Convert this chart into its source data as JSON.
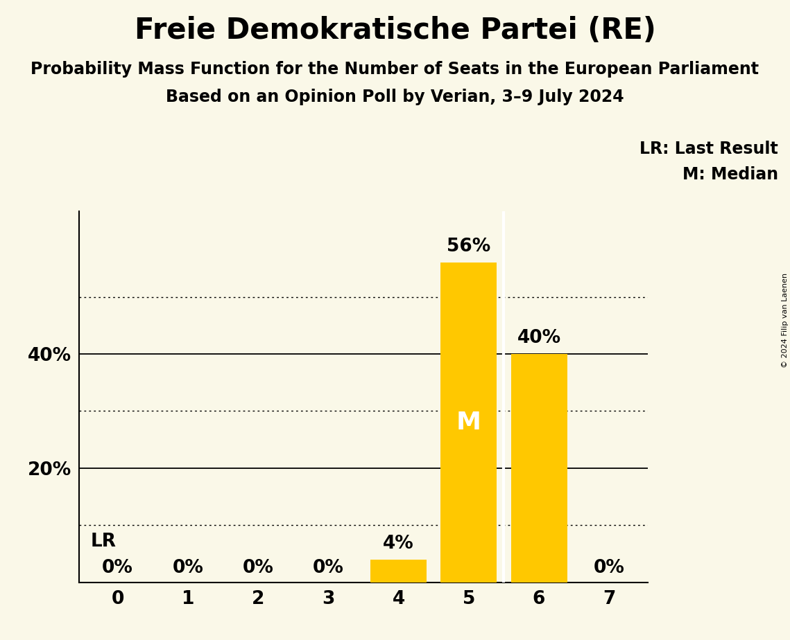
{
  "title": "Freie Demokratische Partei (RE)",
  "subtitle1": "Probability Mass Function for the Number of Seats in the European Parliament",
  "subtitle2": "Based on an Opinion Poll by Verian, 3–9 July 2024",
  "copyright": "© 2024 Filip van Laenen",
  "categories": [
    0,
    1,
    2,
    3,
    4,
    5,
    6,
    7
  ],
  "values": [
    0,
    0,
    0,
    0,
    4,
    56,
    40,
    0
  ],
  "bar_color": "#FFC800",
  "background_color": "#faf8e8",
  "median_bar": 5,
  "lr_bar": 0,
  "median_label": "M",
  "lr_label": "LR",
  "legend_lr": "LR: Last Result",
  "legend_m": "M: Median",
  "ylim": [
    0,
    65
  ],
  "solid_gridlines": [
    20,
    40
  ],
  "dotted_gridlines": [
    10,
    30,
    50
  ],
  "title_fontsize": 30,
  "subtitle1_fontsize": 17,
  "subtitle2_fontsize": 17,
  "label_fontsize": 19,
  "tick_fontsize": 19,
  "legend_fontsize": 17,
  "median_fontsize": 26,
  "lr_fontsize": 19,
  "copyright_fontsize": 8
}
